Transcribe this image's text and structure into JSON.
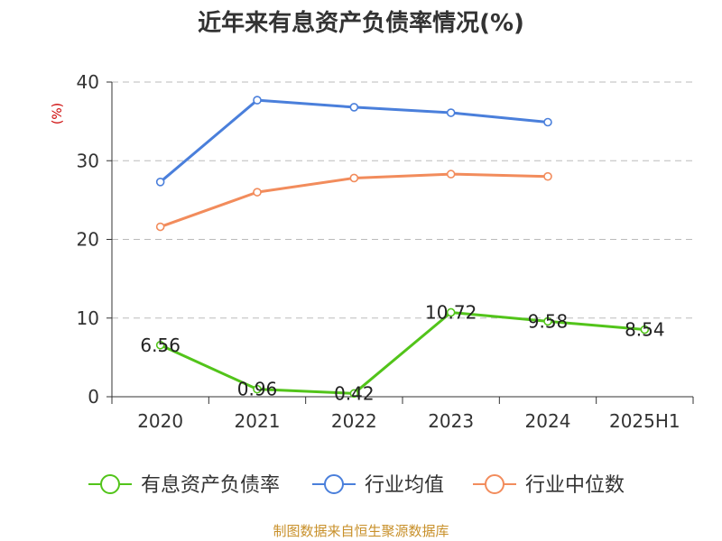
{
  "chart_data": {
    "type": "line",
    "title": "近年来有息资产负债率情况(%)",
    "ylabel": "(%)",
    "categories": [
      "2020",
      "2021",
      "2022",
      "2023",
      "2024",
      "2025H1"
    ],
    "ylim": [
      0,
      40
    ],
    "yticks": [
      "0",
      "10",
      "20",
      "30",
      "40"
    ],
    "grid": true,
    "legend": "bottom",
    "series": [
      {
        "name": "有息资产负债率",
        "color": "#52c41a",
        "values": [
          6.56,
          0.96,
          0.42,
          10.72,
          9.58,
          8.54
        ],
        "labels": [
          "6.56",
          "0.96",
          "0.42",
          "10.72",
          "9.58",
          "8.54"
        ]
      },
      {
        "name": "行业均值",
        "color": "#4a7fdb",
        "values": [
          27.3,
          37.7,
          36.8,
          36.1,
          34.9,
          null
        ]
      },
      {
        "name": "行业中位数",
        "color": "#f28c5c",
        "values": [
          21.6,
          26.0,
          27.8,
          28.3,
          28.0,
          null
        ]
      }
    ],
    "source": "制图数据来自恒生聚源数据库"
  }
}
